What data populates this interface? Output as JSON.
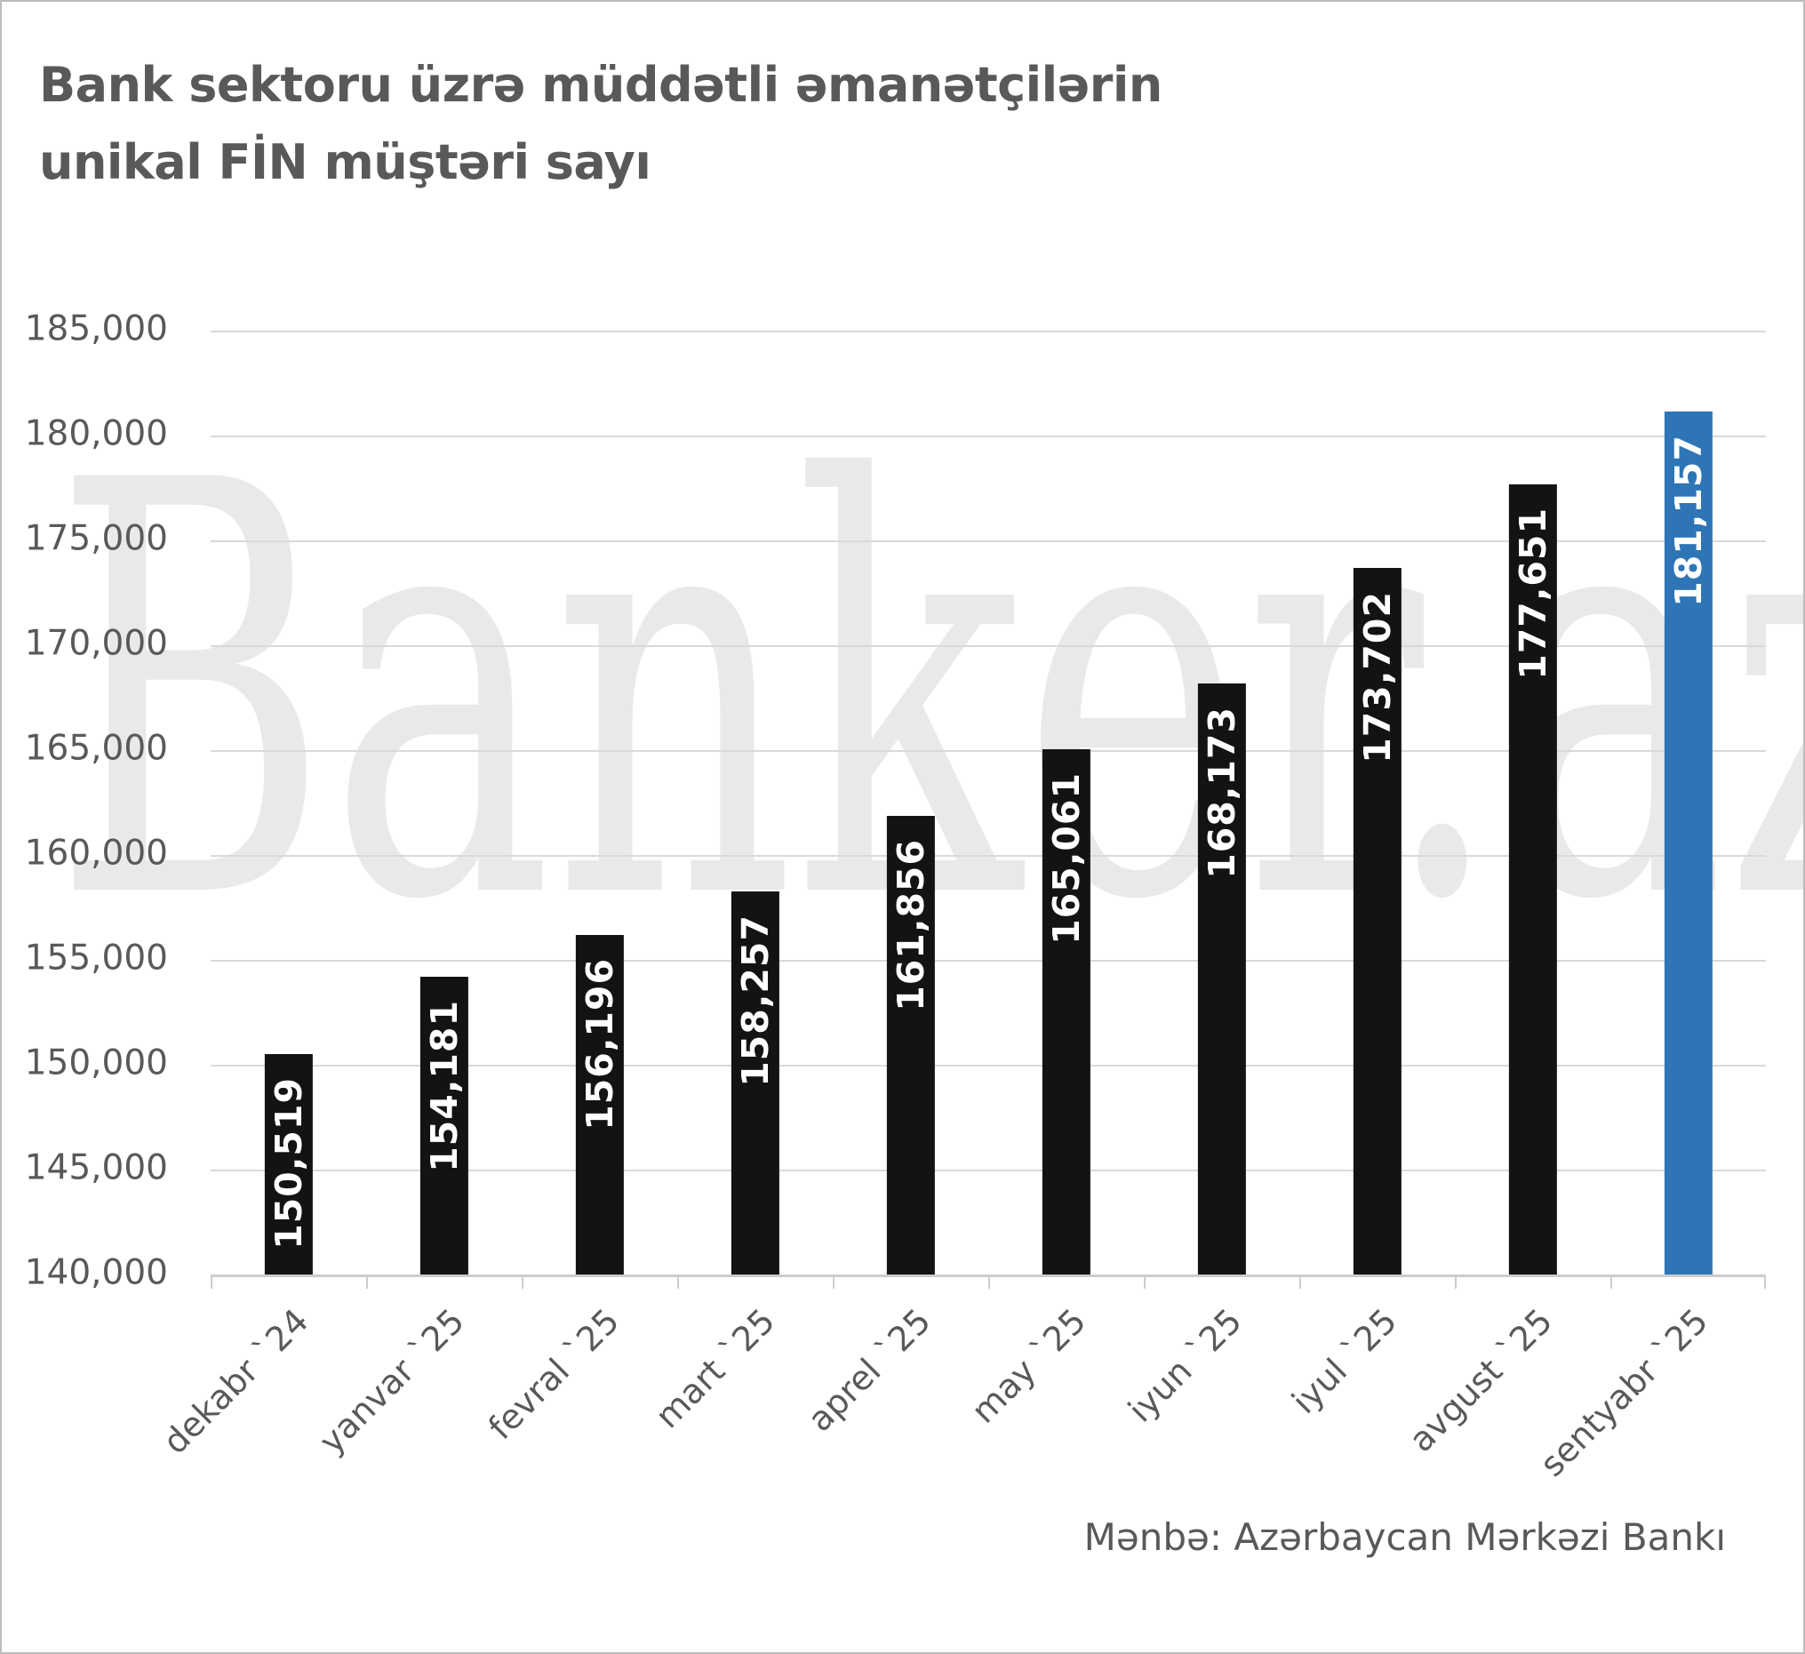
{
  "title": {
    "line1": "Bank sektoru üzrə müddətli əmanətçilərin",
    "line2": "unikal FİN müştəri sayı"
  },
  "watermark": "Banker.az",
  "source": "Mənbə: Azərbaycan Mərkəzi Bankı",
  "chart_data": {
    "type": "bar",
    "title": "Bank sektoru üzrə müddətli əmanətçilərin unikal FİN müştəri sayı",
    "categories": [
      "dekabr `24",
      "yanvar `25",
      "fevral `25",
      "mart `25",
      "aprel `25",
      "may `25",
      "iyun `25",
      "iyul `25",
      "avgust `25",
      "sentyabr `25"
    ],
    "values": [
      150519,
      154181,
      156196,
      158257,
      161856,
      165061,
      168173,
      173702,
      177651,
      181157
    ],
    "value_labels": [
      "150,519",
      "154,181",
      "156,196",
      "158,257",
      "161,856",
      "165,061",
      "168,173",
      "173,702",
      "177,651",
      "181,157"
    ],
    "xlabel": "",
    "ylabel": "",
    "ylim": [
      140000,
      185000
    ],
    "ytick_step": 5000,
    "ytick_labels_top_to_bottom": [
      "185,000",
      "180,000",
      "175,000",
      "170,000",
      "165,000",
      "160,000",
      "155,000",
      "150,000",
      "145,000",
      "140,000"
    ],
    "grid": true,
    "legend": false,
    "bar_colors": {
      "default": "#131313",
      "highlight": "#2E75B6"
    },
    "highlight_index": 9,
    "gridline_color": "#d9d9d9",
    "text_color": "#595959",
    "watermark_color": "#e9e9e9"
  }
}
